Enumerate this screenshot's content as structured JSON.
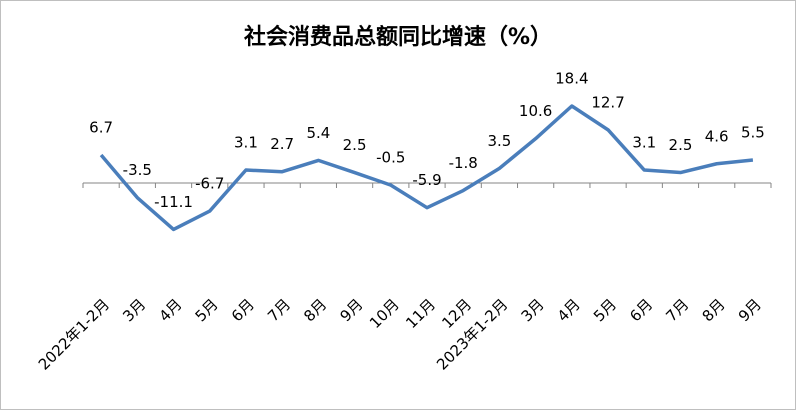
{
  "chart_data": {
    "type": "line",
    "title": "社会消费品总额同比增速（%）",
    "categories": [
      "2022年1-2月",
      "3月",
      "4月",
      "5月",
      "6月",
      "7月",
      "8月",
      "9月",
      "10月",
      "11月",
      "12月",
      "2023年1-2月",
      "3月",
      "4月",
      "5月",
      "6月",
      "7月",
      "8月",
      "9月"
    ],
    "series": [
      {
        "name": "社会消费品总额同比增速",
        "color": "#4a7ebb",
        "values": [
          6.7,
          -3.5,
          -11.1,
          -6.7,
          3.1,
          2.7,
          5.4,
          2.5,
          -0.5,
          -5.9,
          -1.8,
          3.5,
          10.6,
          18.4,
          12.7,
          3.1,
          2.5,
          4.6,
          5.5
        ]
      }
    ],
    "grid": false
  }
}
